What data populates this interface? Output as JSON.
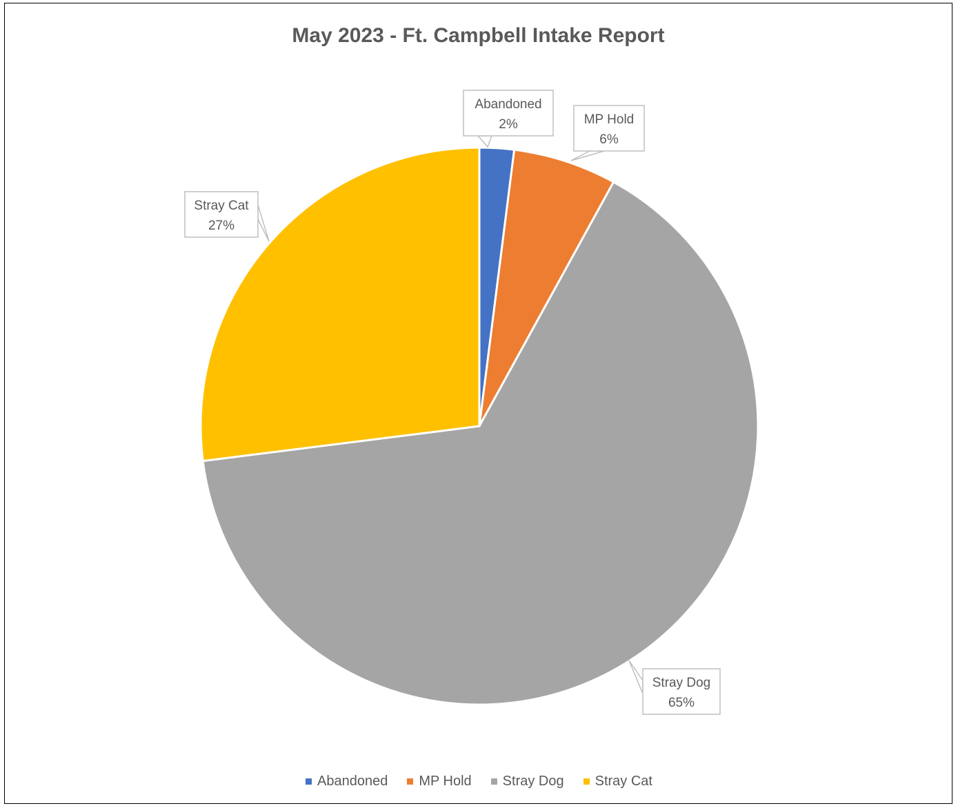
{
  "chart_data": {
    "type": "pie",
    "title": "May 2023 - Ft. Campbell Intake Report",
    "categories": [
      "Abandoned",
      "MP Hold",
      "Stray Dog",
      "Stray Cat"
    ],
    "values": [
      2,
      6,
      65,
      27
    ],
    "data_labels": [
      "2%",
      "6%",
      "65%",
      "27%"
    ],
    "colors": [
      "#4472C4",
      "#ED7D31",
      "#A5A5A5",
      "#FFC000"
    ],
    "start_angle_deg": 0,
    "direction": "clockwise",
    "legend": "bottom"
  }
}
